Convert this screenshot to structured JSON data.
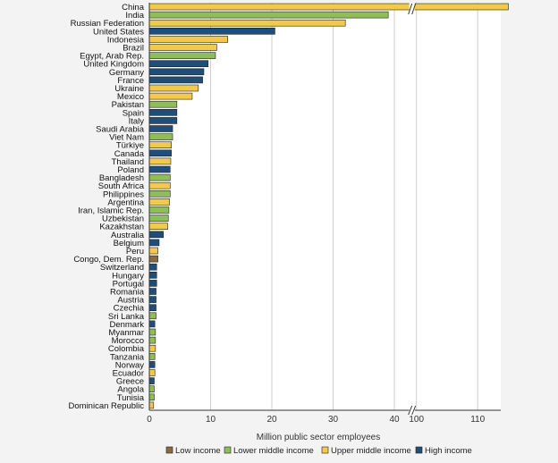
{
  "chart_data": {
    "type": "bar",
    "orientation": "horizontal",
    "xlabel": "Million public sector employees",
    "x_ticks_left": [
      0,
      10,
      20,
      30,
      40
    ],
    "x_ticks_right": [
      100,
      110
    ],
    "axis_break": true,
    "grid": true,
    "legend_position": "bottom",
    "colors": {
      "Low income": "#8b6a3e",
      "Lower middle income": "#8fbd5a",
      "Upper middle income": "#f2c94c",
      "High income": "#1f4e79"
    },
    "legend": [
      {
        "label": "Low income",
        "group": "Low income"
      },
      {
        "label": "Lower middle income",
        "group": "Lower middle income"
      },
      {
        "label": "Upper middle income",
        "group": "Upper middle income"
      },
      {
        "label": "High income",
        "group": "High income"
      }
    ],
    "bars": [
      {
        "country": "China",
        "value": 115,
        "group": "Upper middle income"
      },
      {
        "country": "India",
        "value": 39,
        "group": "Lower middle income"
      },
      {
        "country": "Russian Federation",
        "value": 32,
        "group": "Upper middle income"
      },
      {
        "country": "United States",
        "value": 20.5,
        "group": "High income"
      },
      {
        "country": "Indonesia",
        "value": 12.8,
        "group": "Upper middle income"
      },
      {
        "country": "Brazil",
        "value": 11,
        "group": "Upper middle income"
      },
      {
        "country": "Egypt, Arab Rep.",
        "value": 10.8,
        "group": "Lower middle income"
      },
      {
        "country": "United Kingdom",
        "value": 9.6,
        "group": "High income"
      },
      {
        "country": "Germany",
        "value": 8.9,
        "group": "High income"
      },
      {
        "country": "France",
        "value": 8.7,
        "group": "High income"
      },
      {
        "country": "Ukraine",
        "value": 8,
        "group": "Upper middle income"
      },
      {
        "country": "Mexico",
        "value": 7,
        "group": "Upper middle income"
      },
      {
        "country": "Pakistan",
        "value": 4.5,
        "group": "Lower middle income"
      },
      {
        "country": "Spain",
        "value": 4.5,
        "group": "High income"
      },
      {
        "country": "Italy",
        "value": 4.5,
        "group": "High income"
      },
      {
        "country": "Saudi Arabia",
        "value": 3.8,
        "group": "High income"
      },
      {
        "country": "Viet Nam",
        "value": 3.8,
        "group": "Lower middle income"
      },
      {
        "country": "Türkiye",
        "value": 3.6,
        "group": "Upper middle income"
      },
      {
        "country": "Canada",
        "value": 3.6,
        "group": "High income"
      },
      {
        "country": "Thailand",
        "value": 3.5,
        "group": "Upper middle income"
      },
      {
        "country": "Poland",
        "value": 3.4,
        "group": "High income"
      },
      {
        "country": "Bangladesh",
        "value": 3.4,
        "group": "Lower middle income"
      },
      {
        "country": "South Africa",
        "value": 3.4,
        "group": "Upper middle income"
      },
      {
        "country": "Philippines",
        "value": 3.4,
        "group": "Lower middle income"
      },
      {
        "country": "Argentina",
        "value": 3.3,
        "group": "Upper middle income"
      },
      {
        "country": "Iran, Islamic Rep.",
        "value": 3.2,
        "group": "Lower middle income"
      },
      {
        "country": "Uzbekistan",
        "value": 3.1,
        "group": "Lower middle income"
      },
      {
        "country": "Kazakhstan",
        "value": 3,
        "group": "Upper middle income"
      },
      {
        "country": "Australia",
        "value": 2.3,
        "group": "High income"
      },
      {
        "country": "Belgium",
        "value": 1.6,
        "group": "High income"
      },
      {
        "country": "Peru",
        "value": 1.4,
        "group": "Upper middle income"
      },
      {
        "country": "Congo, Dem. Rep.",
        "value": 1.4,
        "group": "Low income"
      },
      {
        "country": "Switzerland",
        "value": 1.2,
        "group": "High income"
      },
      {
        "country": "Hungary",
        "value": 1.2,
        "group": "High income"
      },
      {
        "country": "Portugal",
        "value": 1.2,
        "group": "High income"
      },
      {
        "country": "Romania",
        "value": 1.1,
        "group": "High income"
      },
      {
        "country": "Austria",
        "value": 1.1,
        "group": "High income"
      },
      {
        "country": "Czechia",
        "value": 1.1,
        "group": "High income"
      },
      {
        "country": "Sri Lanka",
        "value": 1.1,
        "group": "Lower middle income"
      },
      {
        "country": "Denmark",
        "value": 0.9,
        "group": "High income"
      },
      {
        "country": "Myanmar",
        "value": 1,
        "group": "Lower middle income"
      },
      {
        "country": "Morocco",
        "value": 1,
        "group": "Lower middle income"
      },
      {
        "country": "Colombia",
        "value": 1,
        "group": "Upper middle income"
      },
      {
        "country": "Tanzania",
        "value": 0.9,
        "group": "Lower middle income"
      },
      {
        "country": "Norway",
        "value": 0.9,
        "group": "High income"
      },
      {
        "country": "Ecuador",
        "value": 0.9,
        "group": "Upper middle income"
      },
      {
        "country": "Greece",
        "value": 0.8,
        "group": "High income"
      },
      {
        "country": "Angola",
        "value": 0.8,
        "group": "Lower middle income"
      },
      {
        "country": "Tunisia",
        "value": 0.8,
        "group": "Lower middle income"
      },
      {
        "country": "Dominican Republic",
        "value": 0.7,
        "group": "Upper middle income"
      }
    ]
  }
}
